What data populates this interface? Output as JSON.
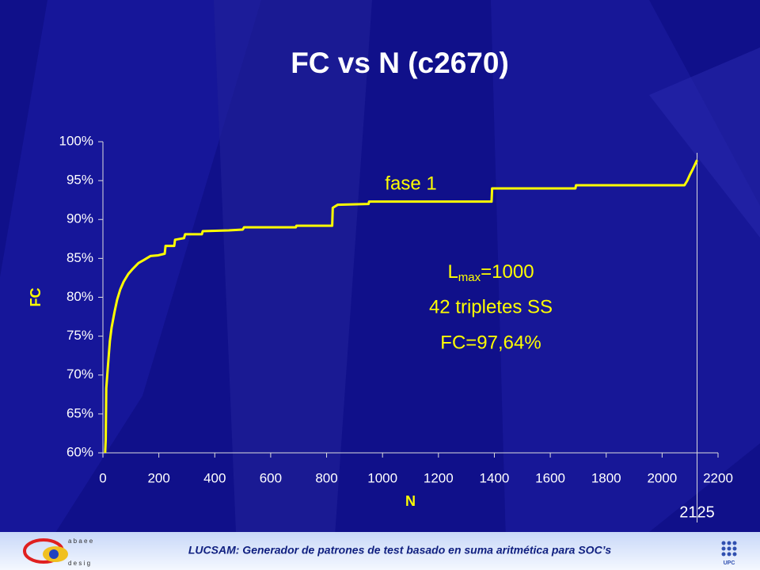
{
  "chart_data": {
    "type": "line",
    "title": "FC vs N (c2670)",
    "x_label": "N",
    "y_label": "FC",
    "xlim": [
      0,
      2200
    ],
    "ylim": [
      60,
      100
    ],
    "xticks": [
      0,
      200,
      400,
      600,
      800,
      1000,
      1200,
      1400,
      1600,
      1800,
      2000,
      2200
    ],
    "yticks": [
      {
        "value": 60,
        "label": "60%"
      },
      {
        "value": 65,
        "label": "65%"
      },
      {
        "value": 70,
        "label": "70%"
      },
      {
        "value": 75,
        "label": "75%"
      },
      {
        "value": 80,
        "label": "80%"
      },
      {
        "value": 85,
        "label": "85%"
      },
      {
        "value": 90,
        "label": "90%"
      },
      {
        "value": 95,
        "label": "95%"
      },
      {
        "value": 100,
        "label": "100%"
      }
    ],
    "x": [
      8,
      10,
      12,
      18,
      25,
      31,
      42,
      51,
      62,
      74,
      91,
      108,
      127,
      147,
      170,
      198,
      221,
      224,
      255,
      258,
      290,
      294,
      354,
      357,
      450,
      500,
      505,
      690,
      692,
      820,
      822,
      840,
      950,
      952,
      1390,
      1392,
      1690,
      1692,
      2080,
      2090,
      2100,
      2110,
      2125
    ],
    "series": [
      {
        "color": "#ffff00",
        "values": [
          60,
          61.7,
          68.3,
          71.2,
          74.4,
          76.1,
          78.2,
          79.7,
          81,
          82,
          83,
          83.7,
          84.4,
          84.8,
          85.3,
          85.4,
          85.6,
          86.6,
          86.6,
          87.4,
          87.6,
          88.1,
          88.1,
          88.5,
          88.6,
          88.7,
          89.0,
          89.0,
          89.2,
          89.2,
          91.5,
          91.9,
          92.0,
          92.3,
          92.3,
          94.0,
          94.0,
          94.4,
          94.4,
          95.0,
          95.8,
          96.5,
          97.64
        ]
      }
    ],
    "marker_x": 2125,
    "annotations": {
      "phase": "fase 1",
      "lmax": [
        "L",
        "max",
        "=1000"
      ],
      "triplets": "42 tripletes SS",
      "fc": "FC=97,64%"
    }
  },
  "footer": {
    "text": "LUCSAM: Generador de patrones de test basado en suma aritmética para SOC’s"
  }
}
